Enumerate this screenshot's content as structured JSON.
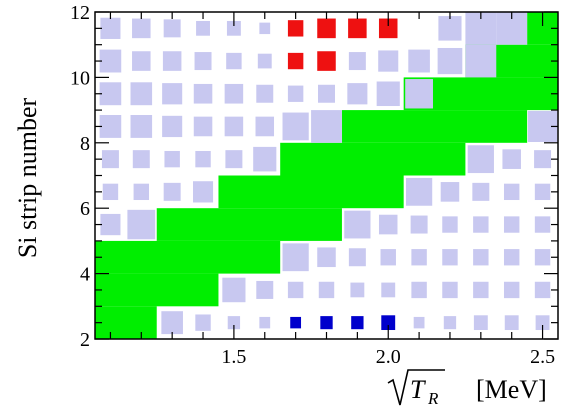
{
  "chart_data": {
    "type": "heatmap",
    "title": "",
    "xlabel": "T",
    "xlabel_subscript": "R",
    "xlabel_unit": "[MeV]",
    "ylabel": "Si strip number",
    "xlim": [
      1.05,
      2.55
    ],
    "ylim": [
      2,
      12
    ],
    "x_ticks": [
      1.5,
      2.0,
      2.5
    ],
    "x_tick_labels": [
      "1.5",
      "2.0",
      "2.5"
    ],
    "y_ticks": [
      2,
      4,
      6,
      8,
      10,
      12
    ],
    "y_tick_labels": [
      "2",
      "4",
      "6",
      "8",
      "10",
      "12"
    ],
    "grid": false,
    "legend": "none",
    "colors": {
      "background_cells": "#c8c8f0",
      "band": "#00ee00",
      "highlight_top": "#ee1111",
      "highlight_bottom": "#0000cc",
      "frame": "#000000"
    },
    "x_bin_width": 0.1,
    "y_bin_height": 1,
    "x_bin_centers": [
      1.1,
      1.2,
      1.3,
      1.4,
      1.5,
      1.6,
      1.7,
      1.8,
      1.9,
      2.0,
      2.1,
      2.2,
      2.3,
      2.4,
      2.5
    ],
    "strip_rows": [
      {
        "strip": 11.5,
        "band": [
          2.45,
          2.55
        ],
        "sizes": [
          0.65,
          0.6,
          0.55,
          0.45,
          0.45,
          0.35,
          0.3,
          0,
          0,
          0,
          0,
          0.75,
          1,
          1,
          0
        ]
      },
      {
        "strip": 10.5,
        "band": [
          2.25,
          2.55
        ],
        "sizes": [
          0.7,
          0.6,
          0.6,
          0.55,
          0.5,
          0.45,
          0,
          0,
          0.55,
          0.65,
          0.7,
          0.8,
          1,
          0,
          0
        ]
      },
      {
        "strip": 9.5,
        "band": [
          2.05,
          2.55
        ],
        "sizes": [
          0.7,
          0.7,
          0.65,
          0.6,
          0.6,
          0.55,
          0.5,
          0.55,
          0.65,
          0.75,
          0.9,
          0,
          0,
          0,
          0
        ]
      },
      {
        "strip": 8.5,
        "band": [
          1.85,
          2.45
        ],
        "sizes": [
          0.7,
          0.7,
          0.65,
          0.6,
          0.6,
          0.6,
          0.85,
          1,
          0,
          0,
          0,
          0,
          0,
          0,
          0.95
        ]
      },
      {
        "strip": 7.5,
        "band": [
          1.65,
          2.25
        ],
        "sizes": [
          0.55,
          0.55,
          0.5,
          0.5,
          0.55,
          0.75,
          0,
          0,
          0,
          0,
          0,
          0,
          0.85,
          0.6,
          0.55
        ]
      },
      {
        "strip": 6.5,
        "band": [
          1.45,
          2.05
        ],
        "sizes": [
          0.5,
          0.5,
          0.55,
          0.65,
          0,
          0,
          0,
          0,
          0,
          0,
          0.85,
          0.6,
          0.55,
          0.5,
          0.5
        ]
      },
      {
        "strip": 5.5,
        "band": [
          1.25,
          1.85
        ],
        "sizes": [
          0.65,
          0.9,
          0,
          0,
          0,
          0,
          0,
          0,
          0.85,
          0.6,
          0.55,
          0.5,
          0.5,
          0.5,
          0.5
        ]
      },
      {
        "strip": 4.5,
        "band": [
          1.05,
          1.65
        ],
        "sizes": [
          0,
          0,
          0,
          0,
          0,
          0,
          0.85,
          0.6,
          0.55,
          0.5,
          0.5,
          0.5,
          0.5,
          0.5,
          0.5
        ]
      },
      {
        "strip": 3.5,
        "band": [
          1.05,
          1.45
        ],
        "sizes": [
          0,
          0,
          0,
          0,
          0.75,
          0.55,
          0.5,
          0.5,
          0.45,
          0.45,
          0.5,
          0.5,
          0.5,
          0.5,
          0.5
        ]
      },
      {
        "strip": 2.5,
        "band": [
          1.05,
          1.25
        ],
        "sizes": [
          0,
          0,
          0.7,
          0.5,
          0.4,
          0.35,
          0,
          0,
          0,
          0,
          0.35,
          0.4,
          0.45,
          0.45,
          0.45
        ]
      }
    ],
    "highlights": [
      {
        "x": 1.7,
        "strip": 11.5,
        "size": 0.5,
        "color": "top"
      },
      {
        "x": 1.8,
        "strip": 11.5,
        "size": 0.6,
        "color": "top"
      },
      {
        "x": 1.9,
        "strip": 11.5,
        "size": 0.6,
        "color": "top"
      },
      {
        "x": 2.0,
        "strip": 11.5,
        "size": 0.6,
        "color": "top"
      },
      {
        "x": 1.7,
        "strip": 10.5,
        "size": 0.5,
        "color": "top"
      },
      {
        "x": 1.8,
        "strip": 10.5,
        "size": 0.6,
        "color": "top"
      },
      {
        "x": 1.7,
        "strip": 2.5,
        "size": 0.35,
        "color": "bottom"
      },
      {
        "x": 1.8,
        "strip": 2.5,
        "size": 0.4,
        "color": "bottom"
      },
      {
        "x": 1.9,
        "strip": 2.5,
        "size": 0.4,
        "color": "bottom"
      },
      {
        "x": 2.0,
        "strip": 2.5,
        "size": 0.45,
        "color": "bottom"
      }
    ]
  }
}
